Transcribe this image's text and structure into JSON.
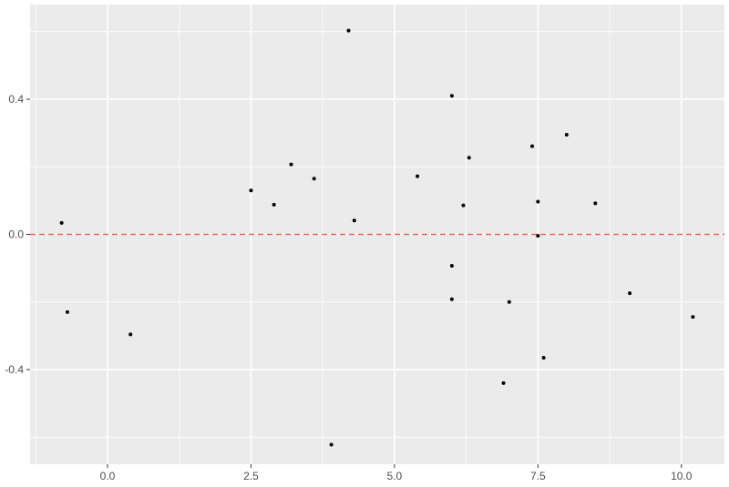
{
  "chart_data": {
    "type": "scatter",
    "title": "",
    "xlabel": "",
    "ylabel": "",
    "xlim": [
      -1.35,
      10.75
    ],
    "ylim": [
      -0.68,
      0.68
    ],
    "x_ticks": [
      0.0,
      2.5,
      5.0,
      7.5,
      10.0
    ],
    "x_tick_labels": [
      "0.0",
      "2.5",
      "5.0",
      "7.5",
      "10.0"
    ],
    "y_ticks": [
      -0.4,
      0.0,
      0.4
    ],
    "y_tick_labels": [
      "-0.4",
      "0.0",
      "0.4"
    ],
    "grid": true,
    "reference_line": {
      "y": 0.0,
      "style": "dashed",
      "color": "#e7655a"
    },
    "colors": {
      "panel": "#ebebeb",
      "grid": "#ffffff",
      "point": "#000000",
      "tick_text": "#4d4d4d"
    },
    "points": [
      {
        "x": -0.8,
        "y": 0.034
      },
      {
        "x": -0.7,
        "y": -0.23
      },
      {
        "x": 0.4,
        "y": -0.296
      },
      {
        "x": 2.5,
        "y": 0.13
      },
      {
        "x": 2.9,
        "y": 0.088
      },
      {
        "x": 3.2,
        "y": 0.207
      },
      {
        "x": 3.6,
        "y": 0.165
      },
      {
        "x": 3.9,
        "y": -0.622
      },
      {
        "x": 4.2,
        "y": 0.603
      },
      {
        "x": 4.3,
        "y": 0.041
      },
      {
        "x": 5.4,
        "y": 0.172
      },
      {
        "x": 6.0,
        "y": 0.41
      },
      {
        "x": 6.0,
        "y": -0.093
      },
      {
        "x": 6.0,
        "y": -0.192
      },
      {
        "x": 6.2,
        "y": 0.086
      },
      {
        "x": 6.3,
        "y": 0.227
      },
      {
        "x": 6.9,
        "y": -0.44
      },
      {
        "x": 7.0,
        "y": -0.2
      },
      {
        "x": 7.4,
        "y": 0.261
      },
      {
        "x": 7.5,
        "y": 0.097
      },
      {
        "x": 7.5,
        "y": -0.004
      },
      {
        "x": 7.6,
        "y": -0.365
      },
      {
        "x": 8.0,
        "y": 0.295
      },
      {
        "x": 8.5,
        "y": 0.092
      },
      {
        "x": 9.1,
        "y": -0.174
      },
      {
        "x": 10.2,
        "y": -0.244
      }
    ]
  }
}
